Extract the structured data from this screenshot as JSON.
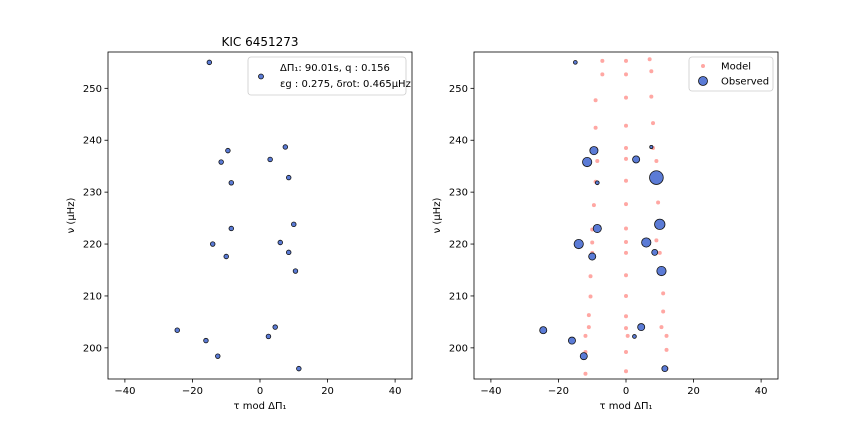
{
  "figure": {
    "panels": [
      {
        "title": "KIC 6451273",
        "xlabel": "τ mod ΔΠ₁",
        "ylabel": "ν (μHz)",
        "xlim": [
          -45,
          45
        ],
        "ylim": [
          194,
          257
        ],
        "xticks": [
          -40,
          -20,
          0,
          20,
          40
        ],
        "yticks": [
          200,
          210,
          220,
          230,
          240,
          250
        ],
        "annotation_lines": [
          "ΔΠ₁: 90.01s, q : 0.156",
          "εg : 0.275, δrot: 0.465μHz"
        ]
      },
      {
        "title": "",
        "xlabel": "τ mod ΔΠ₁",
        "ylabel": "ν (μHz)",
        "xlim": [
          -45,
          45
        ],
        "ylim": [
          194,
          257
        ],
        "xticks": [
          -40,
          -20,
          0,
          20,
          40
        ],
        "yticks": [
          200,
          210,
          220,
          230,
          240,
          250
        ],
        "legend": {
          "placement": "top-right",
          "entries": [
            "Model",
            "Observed"
          ]
        }
      }
    ]
  },
  "colors": {
    "observed_fill": "#5b7bd6",
    "observed_edge": "#111111",
    "model": "#ffa7a3"
  },
  "chart_data": [
    {
      "type": "scatter",
      "title": "KIC 6451273",
      "xlabel": "τ mod ΔΠ₁",
      "ylabel": "ν (μHz)",
      "xlim": [
        -45,
        45
      ],
      "ylim": [
        194,
        257
      ],
      "series": [
        {
          "points": [
            [
              -15,
              255.0
            ],
            [
              0,
              252.0
            ],
            [
              -9.5,
              238.0
            ],
            [
              7.5,
              238.7
            ],
            [
              -11.5,
              235.8
            ],
            [
              3,
              236.3
            ],
            [
              -8.5,
              231.8
            ],
            [
              8.5,
              232.8
            ],
            [
              10,
              223.8
            ],
            [
              -8.5,
              223.0
            ],
            [
              -14,
              220.0
            ],
            [
              6,
              220.3
            ],
            [
              -10,
              217.6
            ],
            [
              8.5,
              218.4
            ],
            [
              10.5,
              214.8
            ],
            [
              -24.5,
              203.4
            ],
            [
              4.5,
              204.0
            ],
            [
              -16,
              201.4
            ],
            [
              2.5,
              202.2
            ],
            [
              -12.5,
              198.4
            ],
            [
              11.5,
              196.0
            ]
          ]
        }
      ]
    },
    {
      "type": "scatter",
      "xlabel": "τ mod ΔΠ₁",
      "ylabel": "ν (μHz)",
      "xlim": [
        -45,
        45
      ],
      "ylim": [
        194,
        257
      ],
      "legend": [
        "Model",
        "Observed"
      ],
      "series": [
        {
          "name": "Model",
          "points": [
            [
              -7,
              255.3
            ],
            [
              0,
              255.3
            ],
            [
              7,
              255.6
            ],
            [
              -7,
              252.7
            ],
            [
              0,
              252.7
            ],
            [
              7.5,
              253.3
            ],
            [
              -9,
              247.7
            ],
            [
              0,
              248.2
            ],
            [
              7.5,
              248.4
            ],
            [
              -9,
              242.4
            ],
            [
              0,
              242.8
            ],
            [
              8,
              243.3
            ],
            [
              -9,
              238.4
            ],
            [
              0,
              238.5
            ],
            [
              8,
              238.5
            ],
            [
              -8.5,
              236.0
            ],
            [
              0,
              236.4
            ],
            [
              9,
              236.0
            ],
            [
              -9,
              232.0
            ],
            [
              0,
              232.2
            ],
            [
              9,
              232.5
            ],
            [
              -9.5,
              227.5
            ],
            [
              0,
              227.7
            ],
            [
              9.5,
              228.0
            ],
            [
              -10,
              222.8
            ],
            [
              0,
              223.0
            ],
            [
              10,
              223.2
            ],
            [
              -10,
              220.3
            ],
            [
              0,
              220.4
            ],
            [
              9,
              220.7
            ],
            [
              -10,
              218.3
            ],
            [
              0,
              218.3
            ],
            [
              10,
              218.3
            ],
            [
              -10.5,
              213.8
            ],
            [
              0,
              214.0
            ],
            [
              10.5,
              214.4
            ],
            [
              -10.5,
              209.9
            ],
            [
              0,
              210.0
            ],
            [
              11,
              210.5
            ],
            [
              -11,
              206.3
            ],
            [
              0,
              206.1
            ],
            [
              11,
              207.0
            ],
            [
              -11,
              204.0
            ],
            [
              0,
              203.8
            ],
            [
              10.5,
              204.0
            ],
            [
              -12,
              202.3
            ],
            [
              0.5,
              202.3
            ],
            [
              12,
              202.3
            ],
            [
              -12,
              199.2
            ],
            [
              0,
              199.2
            ],
            [
              12,
              199.6
            ],
            [
              -12,
              195.0
            ],
            [
              0,
              195.5
            ],
            [
              12,
              196.0
            ]
          ]
        },
        {
          "name": "Observed",
          "points": [
            {
              "x": -15,
              "y": 255.0,
              "size": 2
            },
            {
              "x": -9.5,
              "y": 238.0,
              "size": 6
            },
            {
              "x": 7.5,
              "y": 238.7,
              "size": 1.5
            },
            {
              "x": -11.5,
              "y": 235.8,
              "size": 7
            },
            {
              "x": 3,
              "y": 236.3,
              "size": 5
            },
            {
              "x": -8.5,
              "y": 231.8,
              "size": 2
            },
            {
              "x": 9,
              "y": 232.8,
              "size": 11
            },
            {
              "x": -8.5,
              "y": 223.0,
              "size": 6
            },
            {
              "x": 10,
              "y": 223.8,
              "size": 8
            },
            {
              "x": -14,
              "y": 220.0,
              "size": 7
            },
            {
              "x": 6,
              "y": 220.3,
              "size": 7
            },
            {
              "x": -10,
              "y": 217.6,
              "size": 5
            },
            {
              "x": 8.5,
              "y": 218.4,
              "size": 4
            },
            {
              "x": 10.5,
              "y": 214.8,
              "size": 7
            },
            {
              "x": -24.5,
              "y": 203.4,
              "size": 5
            },
            {
              "x": 4.5,
              "y": 204.0,
              "size": 5
            },
            {
              "x": -16,
              "y": 201.4,
              "size": 5
            },
            {
              "x": 2.5,
              "y": 202.2,
              "size": 2
            },
            {
              "x": -12.5,
              "y": 198.4,
              "size": 5
            },
            {
              "x": 11.5,
              "y": 196.0,
              "size": 4
            }
          ]
        }
      ]
    }
  ]
}
